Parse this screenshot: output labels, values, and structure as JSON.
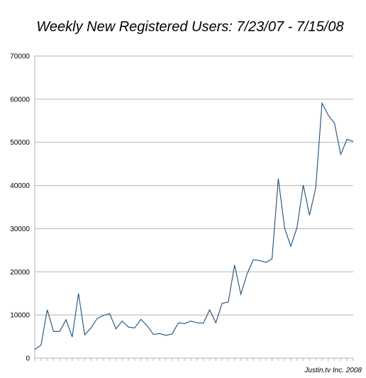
{
  "chart_data": {
    "type": "line",
    "title": "Weekly New Registered Users: 7/23/07 - 7/15/08",
    "xlabel": "",
    "ylabel": "",
    "credit": "Justin.tv Inc. 2008",
    "ylim": [
      0,
      70000
    ],
    "yticks": [
      0,
      10000,
      20000,
      30000,
      40000,
      50000,
      60000,
      70000
    ],
    "ytick_labels": [
      "0",
      "10000",
      "20000",
      "30000",
      "40000",
      "50000",
      "60000",
      "70000"
    ],
    "grid": true,
    "legend": "none",
    "line_color": "#1f4e79",
    "series": [
      {
        "values": [
          2000,
          3000,
          11200,
          6200,
          6200,
          8900,
          4900,
          15000,
          5400,
          7000,
          9200,
          9900,
          10300,
          6800,
          8600,
          7200,
          7000,
          9000,
          7500,
          5500,
          5700,
          5300,
          5600,
          8200,
          8000,
          8600,
          8200,
          8100,
          11200,
          8200,
          12700,
          13000,
          21600,
          14800,
          19500,
          22800,
          22600,
          22200,
          23000,
          41600,
          30200,
          25900,
          30300,
          40100,
          33100,
          39500,
          59100,
          56300,
          54400,
          47200,
          50700,
          50200
        ]
      }
    ]
  }
}
